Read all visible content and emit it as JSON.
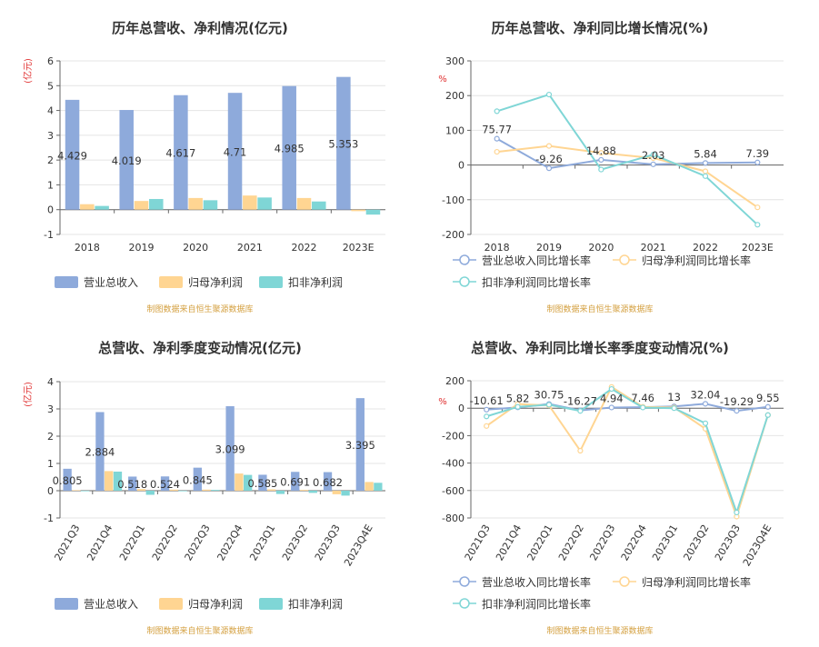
{
  "colors": {
    "revenue": "#8eaadb",
    "net_profit": "#ffd592",
    "deducted_profit": "#7fd6d6"
  },
  "legend_bar": [
    "营业总收入",
    "归母净利润",
    "扣非净利润"
  ],
  "legend_line": [
    "营业总收入同比增长率",
    "归母净利润同比增长率",
    "扣非净利润同比增长率"
  ],
  "source_note": "制图数据来自恒生聚源数据库",
  "chart_data": [
    {
      "type": "bar",
      "title": "历年总营收、净利情况(亿元)",
      "unit": "(亿元)",
      "categories": [
        "2018",
        "2019",
        "2020",
        "2021",
        "2022",
        "2023E"
      ],
      "ylim": [
        -1,
        6
      ],
      "yticks": [
        -1,
        0,
        1,
        2,
        3,
        4,
        5,
        6
      ],
      "series": [
        {
          "name": "营业总收入",
          "values": [
            4.429,
            4.019,
            4.617,
            4.71,
            4.985,
            5.353
          ],
          "labels": [
            "4.429",
            "4.019",
            "4.617",
            "4.71",
            "4.985",
            "5.353"
          ]
        },
        {
          "name": "归母净利润",
          "values": [
            0.22,
            0.35,
            0.47,
            0.57,
            0.47,
            -0.06
          ]
        },
        {
          "name": "扣非净利润",
          "values": [
            0.15,
            0.43,
            0.38,
            0.49,
            0.33,
            -0.2
          ]
        }
      ],
      "grid": true,
      "legend": "bottom"
    },
    {
      "type": "line",
      "title": "历年总营收、净利同比增长情况(%)",
      "unit": "%",
      "categories": [
        "2018",
        "2019",
        "2020",
        "2021",
        "2022",
        "2023E"
      ],
      "ylim": [
        -200,
        300
      ],
      "yticks": [
        -200,
        -100,
        0,
        100,
        200,
        300
      ],
      "series": [
        {
          "name": "营业总收入同比增长率",
          "values": [
            75.77,
            -9.26,
            14.88,
            2.03,
            5.84,
            7.39
          ],
          "labels": [
            "75.77",
            "-9.26",
            "14.88",
            "2.03",
            "5.84",
            "7.39"
          ]
        },
        {
          "name": "归母净利润同比增长率",
          "values": [
            38,
            55,
            35,
            20,
            -18,
            -122
          ]
        },
        {
          "name": "扣非净利润同比增长率",
          "values": [
            155,
            203,
            -13,
            30,
            -32,
            -172
          ]
        }
      ],
      "grid": true,
      "legend": "bottom"
    },
    {
      "type": "bar",
      "title": "总营收、净利季度变动情况(亿元)",
      "unit": "(亿元)",
      "categories": [
        "2021Q3",
        "2021Q4",
        "2022Q1",
        "2022Q2",
        "2022Q3",
        "2022Q4",
        "2023Q1",
        "2023Q2",
        "2023Q3",
        "2023Q4E"
      ],
      "ylim": [
        -1,
        4
      ],
      "yticks": [
        -1,
        0,
        1,
        2,
        3,
        4
      ],
      "series": [
        {
          "name": "营业总收入",
          "values": [
            0.805,
            2.884,
            0.518,
            0.524,
            0.845,
            3.099,
            0.585,
            0.691,
            0.682,
            3.395
          ],
          "labels": [
            "0.805",
            "2.884",
            "0.518",
            "0.524",
            "0.845",
            "3.099",
            "0.585",
            "0.691",
            "0.682",
            "3.395"
          ]
        },
        {
          "name": "归母净利润",
          "values": [
            0.02,
            0.72,
            0.06,
            0.04,
            0.04,
            0.63,
            0.05,
            0.03,
            -0.13,
            0.32
          ]
        },
        {
          "name": "扣非净利润",
          "values": [
            -0.02,
            0.7,
            -0.15,
            -0.02,
            0.03,
            0.58,
            -0.12,
            -0.08,
            -0.18,
            0.29
          ]
        }
      ],
      "grid": true,
      "legend": "bottom"
    },
    {
      "type": "line",
      "title": "总营收、净利同比增长率季度变动情况(%)",
      "unit": "%",
      "categories": [
        "2021Q3",
        "2021Q4",
        "2022Q1",
        "2022Q2",
        "2022Q3",
        "2022Q4",
        "2023Q1",
        "2023Q2",
        "2023Q3",
        "2023Q4E"
      ],
      "ylim": [
        -800,
        200
      ],
      "yticks": [
        -800,
        -600,
        -400,
        -200,
        0,
        200
      ],
      "series": [
        {
          "name": "营业总收入同比增长率",
          "values": [
            -10.61,
            5.82,
            30.75,
            -16.27,
            4.94,
            7.46,
            13,
            32.04,
            -19.29,
            9.55
          ],
          "labels": [
            "-10.61",
            "5.82",
            "30.75",
            "-16.27",
            "4.94",
            "7.46",
            "13",
            "32.04",
            "-19.29",
            "9.55"
          ]
        },
        {
          "name": "归母净利润同比增长率",
          "values": [
            -130,
            30,
            20,
            -310,
            155,
            10,
            5,
            -150,
            -790,
            -50
          ]
        },
        {
          "name": "扣非净利润同比增长率",
          "values": [
            -60,
            10,
            25,
            -20,
            140,
            5,
            0,
            -110,
            -760,
            -50
          ]
        }
      ],
      "grid": true,
      "legend": "bottom"
    }
  ]
}
